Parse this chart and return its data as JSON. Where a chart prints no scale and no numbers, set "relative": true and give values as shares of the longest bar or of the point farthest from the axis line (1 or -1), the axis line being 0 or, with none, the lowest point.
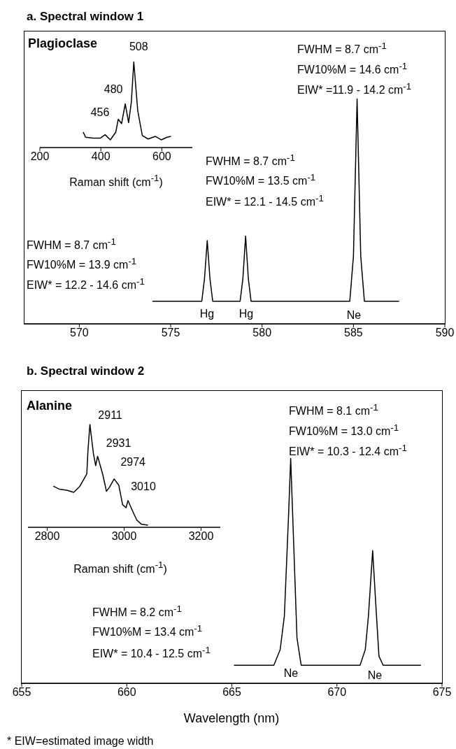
{
  "chart_data": [
    {
      "type": "line",
      "title": "a. Spectral window 1",
      "relative": true,
      "xlim": [
        567,
        590
      ],
      "xticks": [
        570,
        575,
        580,
        585,
        590
      ],
      "x": [
        574,
        576.7,
        576.85,
        577.0,
        577.15,
        577.3,
        578.8,
        578.95,
        579.1,
        579.25,
        579.4,
        584.8,
        585.0,
        585.2,
        585.4,
        585.6,
        587.5
      ],
      "series": [
        {
          "color": "#000000",
          "values": [
            0.1,
            0.1,
            0.2,
            0.37,
            0.2,
            0.1,
            0.1,
            0.2,
            0.39,
            0.2,
            0.1,
            0.1,
            0.3,
            1,
            0.3,
            0.1,
            0.1
          ]
        }
      ],
      "annotations": [
        "FWHM = 8.7 cm$^{-1}$",
        "FW10%M = 14.6 cm$^{-1}$",
        "EIW* =11.9 - 14.2 cm$^{-1}$",
        "FWHM = 8.7 cm$^{-1}$",
        "FW10%M = 13.5 cm$^{-1}$",
        "EIW* = 12.1 - 14.5 cm$^{-1}$",
        "FWHM = 8.7 cm$^{-1}$",
        "FW10%M = 13.9 cm$^{-1}$",
        "EIW* = 12.2 - 14.6 cm$^{-1}$",
        "Hg",
        "Hg",
        "Ne"
      ]
    },
    {
      "type": "line",
      "title": "Plagioclase",
      "relative": true,
      "xlabel": "Raman shift (cm$^{-1}$)",
      "xlim": [
        200,
        700
      ],
      "xticks": [
        200,
        400,
        600
      ],
      "x": [
        342,
        350,
        374,
        398,
        414,
        431,
        449,
        457,
        468,
        480,
        491,
        500,
        508,
        521,
        536,
        555,
        579,
        598,
        617,
        630
      ],
      "series": [
        {
          "color": "#000000",
          "values": [
            0.18,
            0.12,
            0.11,
            0.11,
            0.15,
            0.09,
            0.18,
            0.33,
            0.28,
            0.51,
            0.29,
            0.53,
            1,
            0.43,
            0.14,
            0.1,
            0.13,
            0.09,
            0.12,
            0.13
          ]
        }
      ],
      "annotations": [
        {
          "text": "508",
          "x": 508,
          "y": 1
        },
        {
          "text": "480",
          "x": 480,
          "y": 0.51
        },
        {
          "text": "456",
          "x": 457,
          "y": 0.33
        }
      ]
    },
    {
      "type": "line",
      "title": "b. Spectral window 2",
      "relative": true,
      "xlabel": "Wavelength (nm)",
      "xlim": [
        655,
        675
      ],
      "xticks": [
        655,
        660,
        665,
        670,
        675
      ],
      "x": [
        665.1,
        667.0,
        667.3,
        667.5,
        667.7,
        667.8,
        667.95,
        668.1,
        668.3,
        671.1,
        671.35,
        671.5,
        671.7,
        671.85,
        672.0,
        672.2,
        674.0
      ],
      "series": [
        {
          "color": "#000000",
          "values": [
            0.08,
            0.08,
            0.15,
            0.3,
            0.75,
            1,
            0.6,
            0.2,
            0.08,
            0.08,
            0.15,
            0.3,
            0.59,
            0.35,
            0.12,
            0.08,
            0.08
          ]
        }
      ],
      "annotations": [
        "FWHM = 8.1 cm$^{-1}$",
        "FW10%M = 13.0 cm$^{-1}$",
        "EIW* = 10.3 - 12.4 cm$^{-1}$",
        "FWHM = 8.2 cm$^{-1}$",
        "FW10%M = 13.4 cm$^{-1}$",
        "EIW* = 10.4 - 12.5 cm$^{-1}$",
        "Ne",
        "Ne",
        "* EIW=estimated image width"
      ]
    },
    {
      "type": "line",
      "title": "Alanine",
      "relative": true,
      "xlabel": "Raman shift (cm$^{-1}$)",
      "xlim": [
        2750,
        3250
      ],
      "xticks": [
        2800,
        3000,
        3200
      ],
      "x": [
        2816,
        2832,
        2851,
        2869,
        2885,
        2903,
        2906,
        2911,
        2920,
        2926,
        2931,
        2944,
        2954,
        2962,
        2974,
        2986,
        2996,
        3005,
        3010,
        3023,
        3033,
        3045,
        3062
      ],
      "series": [
        {
          "color": "#000000",
          "values": [
            0.4,
            0.37,
            0.36,
            0.34,
            0.4,
            0.52,
            0.75,
            1,
            0.72,
            0.6,
            0.69,
            0.52,
            0.35,
            0.39,
            0.47,
            0.41,
            0.22,
            0.19,
            0.26,
            0.15,
            0.07,
            0.03,
            0.02
          ]
        }
      ],
      "annotations": [
        {
          "text": "2911",
          "x": 2911,
          "y": 1
        },
        {
          "text": "2931",
          "x": 2931,
          "y": 0.69
        },
        {
          "text": "2974",
          "x": 2974,
          "y": 0.47
        },
        {
          "text": "3010",
          "x": 3010,
          "y": 0.26
        }
      ]
    }
  ]
}
